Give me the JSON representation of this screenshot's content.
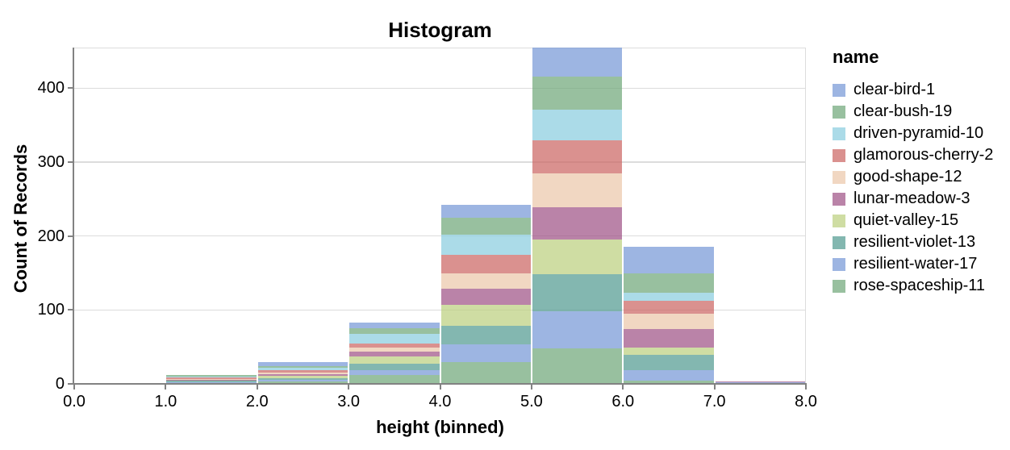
{
  "chart_data": {
    "type": "bar",
    "subtype": "stacked-histogram",
    "title": "Histogram",
    "xlabel": "height (binned)",
    "ylabel": "Count of Records",
    "legend_title": "name",
    "x_tick_labels": [
      "0.0",
      "1.0",
      "2.0",
      "3.0",
      "4.0",
      "5.0",
      "6.0",
      "7.0",
      "8.0"
    ],
    "y_tick_labels": [
      "0",
      "100",
      "200",
      "300",
      "400"
    ],
    "y_tick_values": [
      0,
      100,
      200,
      300,
      400
    ],
    "xlim": [
      0,
      8
    ],
    "ylim": [
      0,
      455
    ],
    "bin_width": 1,
    "bins": [
      "0-1",
      "1-2",
      "2-3",
      "3-4",
      "4-5",
      "5-6",
      "6-7",
      "7-8"
    ],
    "bin_totals": [
      1,
      12,
      29,
      83,
      242,
      455,
      185,
      3
    ],
    "grid": "horizontal-only",
    "legend_position": "right",
    "stack_order": "first-series-on-top",
    "series": [
      {
        "name": "clear-bird-1",
        "color": "#7395d6",
        "values": [
          0,
          0,
          5,
          8,
          17,
          39,
          36,
          0
        ]
      },
      {
        "name": "clear-bush-19",
        "color": "#6ca576",
        "values": [
          0,
          2,
          2,
          7,
          23,
          45,
          26,
          0
        ]
      },
      {
        "name": "driven-pyramid-10",
        "color": "#87ccde",
        "values": [
          0,
          1,
          3,
          13,
          27,
          41,
          11,
          0
        ]
      },
      {
        "name": "glamorous-cherry-2",
        "color": "#cb6360",
        "values": [
          0,
          2,
          4,
          6,
          25,
          45,
          17,
          0
        ]
      },
      {
        "name": "good-shape-12",
        "color": "#ebc6a8",
        "values": [
          0,
          1,
          2,
          5,
          21,
          46,
          21,
          0
        ]
      },
      {
        "name": "lunar-meadow-3",
        "color": "#9c4e83",
        "values": [
          0,
          1,
          2,
          7,
          22,
          44,
          25,
          1
        ]
      },
      {
        "name": "quiet-valley-15",
        "color": "#bace7c",
        "values": [
          1,
          1,
          3,
          10,
          28,
          47,
          10,
          0
        ]
      },
      {
        "name": "resilient-violet-13",
        "color": "#4e988f",
        "values": [
          0,
          2,
          2,
          8,
          26,
          50,
          20,
          0
        ]
      },
      {
        "name": "resilient-water-17",
        "color": "#7395d6",
        "values": [
          0,
          1,
          3,
          7,
          24,
          50,
          15,
          2
        ]
      },
      {
        "name": "rose-spaceship-11",
        "color": "#6ca576",
        "values": [
          0,
          1,
          3,
          12,
          29,
          48,
          4,
          0
        ]
      }
    ],
    "colors": {
      "gridline": "#dcdcdc",
      "axis_domain": "#828282",
      "label_text": "#000000",
      "fill_opacity": 0.7
    }
  }
}
